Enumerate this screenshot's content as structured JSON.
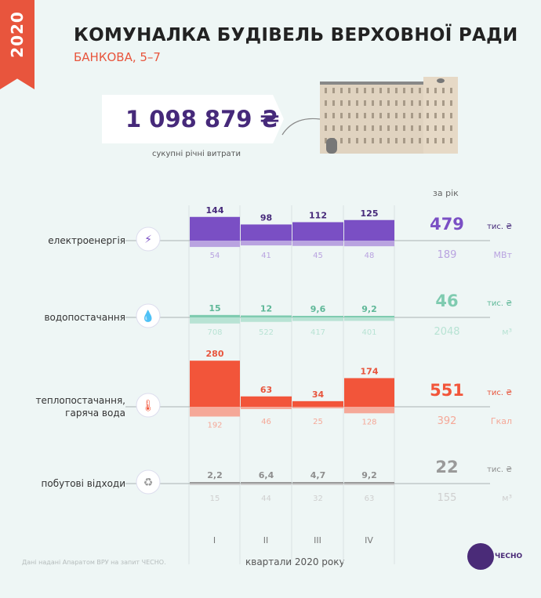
{
  "badge_year": "2020",
  "title": "КОМУНАЛКА БУДІВЕЛЬ ВЕРХОВНОЇ РАДИ",
  "subtitle": "БАНКОВА, 5–7",
  "total": "1 098 879 ₴",
  "total_caption": "сукупні річні витрати",
  "year_header": "за рік",
  "footnote": "Дані надані Апаратом ВРУ на запит ЧЕСНО.",
  "logo_text": "ЧЕСНО",
  "chart_data": {
    "type": "bar",
    "categories": [
      "I",
      "II",
      "III",
      "IV"
    ],
    "xlabel": "квартали 2020 року",
    "series": [
      {
        "name": "електроенергія",
        "color": "#7a4fc4",
        "light": "#b9a3e0",
        "cost_label_color": "#46297a",
        "cost": [
          144,
          98,
          112,
          125
        ],
        "cost_labels": [
          "144",
          "98",
          "112",
          "125"
        ],
        "consumption": [
          54,
          41,
          45,
          48
        ],
        "consumption_labels": [
          "54",
          "41",
          "45",
          "48"
        ],
        "year_cost": "479",
        "cost_unit": "тис. ₴",
        "year_consumption": "189",
        "consumption_unit": "МВт",
        "icon": "lightning-icon"
      },
      {
        "name": "водопостачання",
        "color": "#7fcbb0",
        "light": "#b8e3d4",
        "cost_label_color": "#5fb898",
        "cost": [
          15,
          12,
          9.6,
          9.2
        ],
        "cost_labels": [
          "15",
          "12",
          "9,6",
          "9,2"
        ],
        "consumption": [
          708,
          522,
          417,
          401
        ],
        "consumption_labels": [
          "708",
          "522",
          "417",
          "401"
        ],
        "year_cost": "46",
        "cost_unit": "тис. ₴",
        "year_consumption": "2048",
        "consumption_unit": "м³",
        "icon": "water-drop-icon"
      },
      {
        "name": "теплопостачання, гаряча вода",
        "color": "#f2553a",
        "light": "#f5a898",
        "cost_label_color": "#e8553d",
        "cost": [
          280,
          63,
          34,
          174
        ],
        "cost_labels": [
          "280",
          "63",
          "34",
          "174"
        ],
        "consumption": [
          192,
          46,
          25,
          128
        ],
        "consumption_labels": [
          "192",
          "46",
          "25",
          "128"
        ],
        "year_cost": "551",
        "cost_unit": "тис. ₴",
        "year_consumption": "392",
        "consumption_unit": "Гкал",
        "icon": "thermometer-icon"
      },
      {
        "name": "побутові відходи",
        "color": "#9a9a9a",
        "light": "#cfcfcf",
        "cost_label_color": "#8e8e8e",
        "cost": [
          2.2,
          6.4,
          4.7,
          9.2
        ],
        "cost_labels": [
          "2,2",
          "6,4",
          "4,7",
          "9,2"
        ],
        "consumption": [
          15,
          44,
          32,
          63
        ],
        "consumption_labels": [
          "15",
          "44",
          "32",
          "63"
        ],
        "year_cost": "22",
        "cost_unit": "тис. ₴",
        "year_consumption": "155",
        "consumption_unit": "м³",
        "icon": "recycle-icon"
      }
    ]
  }
}
